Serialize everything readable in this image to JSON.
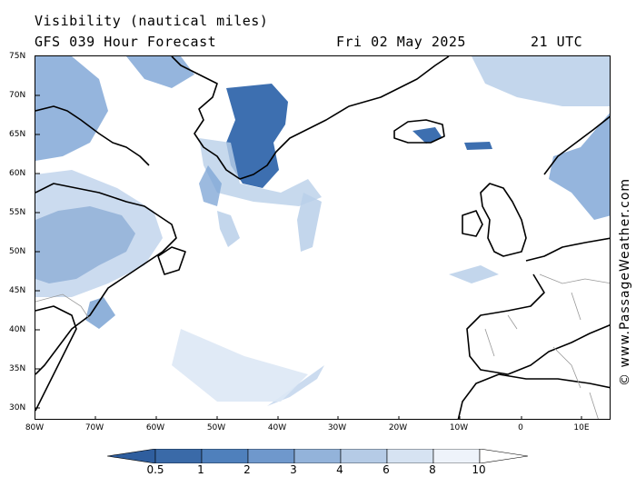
{
  "title": {
    "line1": "Visibility (nautical miles)",
    "model": "GFS 039 Hour Forecast",
    "date": "Fri 02 May 2025",
    "time": "21 UTC"
  },
  "credit": "© www.PassageWeather.com",
  "axes": {
    "lat_labels": [
      "75N",
      "70N",
      "65N",
      "60N",
      "55N",
      "50N",
      "45N",
      "40N",
      "35N",
      "30N"
    ],
    "lon_labels": [
      "80W",
      "70W",
      "60W",
      "50W",
      "40W",
      "30W",
      "20W",
      "10W",
      "0",
      "10E"
    ]
  },
  "colorbar": {
    "labels": [
      "0.5",
      "1",
      "2",
      "3",
      "4",
      "6",
      "8",
      "10"
    ],
    "colors": [
      "#3a6aa8",
      "#4f80bc",
      "#6f98cc",
      "#93b3da",
      "#b5cbe6",
      "#d6e3f2",
      "#eef3fa",
      "#ffffff"
    ]
  },
  "colors": {
    "dense": "#3d6fb0",
    "medium": "#7ba3d4",
    "light": "#b9cfe9",
    "faint": "#dde8f5"
  }
}
